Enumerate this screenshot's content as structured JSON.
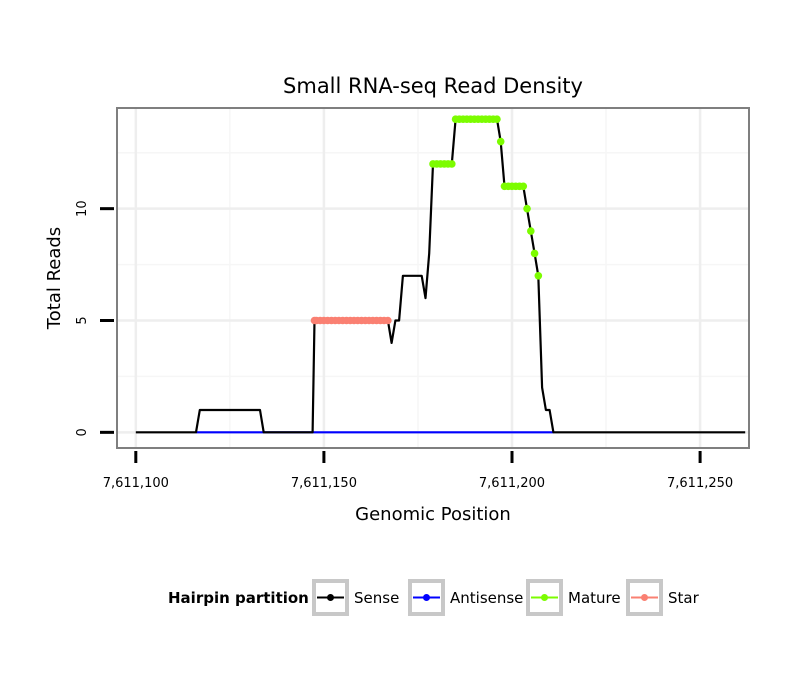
{
  "chart_data": {
    "type": "line",
    "title": "Small RNA-seq Read Density",
    "xlabel": "Genomic Position",
    "ylabel": "Total Reads",
    "xlim": [
      7611095,
      7611263
    ],
    "ylim": [
      -0.7,
      14.5
    ],
    "x_ticks": [
      7611100,
      7611150,
      7611200,
      7611250
    ],
    "x_tick_labels": [
      "7,611,100",
      "7,611,150",
      "7,611,200",
      "7,611,250"
    ],
    "y_ticks": [
      0,
      5,
      10
    ],
    "y_tick_labels": [
      "0",
      "5",
      "10"
    ],
    "grid": true,
    "legend": {
      "title": "Hairpin partition",
      "position": "bottom",
      "entries": [
        {
          "name": "Sense",
          "color": "#000000"
        },
        {
          "name": "Antisense",
          "color": "#0000ff"
        },
        {
          "name": "Mature",
          "color": "#7cfc00"
        },
        {
          "name": "Star",
          "color": "#fa8072"
        }
      ]
    },
    "series": [
      {
        "name": "Sense",
        "color": "#000000",
        "points": [
          [
            7611100,
            0
          ],
          [
            7611116,
            0
          ],
          [
            7611117,
            1
          ],
          [
            7611133,
            1
          ],
          [
            7611134,
            0
          ],
          [
            7611147,
            0
          ],
          [
            7611147.5,
            5
          ],
          [
            7611167,
            5
          ],
          [
            7611168,
            4
          ],
          [
            7611169,
            5
          ],
          [
            7611170,
            5
          ],
          [
            7611171,
            7
          ],
          [
            7611176,
            7
          ],
          [
            7611177,
            6
          ],
          [
            7611178,
            8
          ],
          [
            7611179,
            12
          ],
          [
            7611184,
            12
          ],
          [
            7611185,
            14
          ],
          [
            7611196,
            14
          ],
          [
            7611197,
            13
          ],
          [
            7611198,
            11
          ],
          [
            7611203,
            11
          ],
          [
            7611204,
            10
          ],
          [
            7611205,
            9
          ],
          [
            7611206,
            8
          ],
          [
            7611207,
            7
          ],
          [
            7611208,
            2
          ],
          [
            7611209,
            1
          ],
          [
            7611210,
            1
          ],
          [
            7611211,
            0
          ],
          [
            7611262,
            0
          ]
        ]
      },
      {
        "name": "Antisense",
        "color": "#0000ff",
        "points": [
          [
            7611116,
            0
          ],
          [
            7611211,
            0
          ]
        ]
      },
      {
        "name": "Mature",
        "color": "#7cfc00",
        "points": [
          [
            7611179,
            12
          ],
          [
            7611180,
            12
          ],
          [
            7611181,
            12
          ],
          [
            7611182,
            12
          ],
          [
            7611183,
            12
          ],
          [
            7611184,
            12
          ],
          [
            7611185,
            14
          ],
          [
            7611186,
            14
          ],
          [
            7611187,
            14
          ],
          [
            7611188,
            14
          ],
          [
            7611189,
            14
          ],
          [
            7611190,
            14
          ],
          [
            7611191,
            14
          ],
          [
            7611192,
            14
          ],
          [
            7611193,
            14
          ],
          [
            7611194,
            14
          ],
          [
            7611195,
            14
          ],
          [
            7611196,
            14
          ],
          [
            7611197,
            13
          ],
          [
            7611198,
            11
          ],
          [
            7611199,
            11
          ],
          [
            7611200,
            11
          ],
          [
            7611201,
            11
          ],
          [
            7611202,
            11
          ],
          [
            7611203,
            11
          ],
          [
            7611204,
            10
          ],
          [
            7611205,
            9
          ],
          [
            7611206,
            8
          ],
          [
            7611207,
            7
          ]
        ]
      },
      {
        "name": "Star",
        "color": "#fa8072",
        "points": [
          [
            7611147.5,
            5
          ],
          [
            7611148,
            5
          ],
          [
            7611149,
            5
          ],
          [
            7611150,
            5
          ],
          [
            7611151,
            5
          ],
          [
            7611152,
            5
          ],
          [
            7611153,
            5
          ],
          [
            7611154,
            5
          ],
          [
            7611155,
            5
          ],
          [
            7611156,
            5
          ],
          [
            7611157,
            5
          ],
          [
            7611158,
            5
          ],
          [
            7611159,
            5
          ],
          [
            7611160,
            5
          ],
          [
            7611161,
            5
          ],
          [
            7611162,
            5
          ],
          [
            7611163,
            5
          ],
          [
            7611164,
            5
          ],
          [
            7611165,
            5
          ],
          [
            7611166,
            5
          ],
          [
            7611167,
            5
          ]
        ]
      }
    ]
  }
}
